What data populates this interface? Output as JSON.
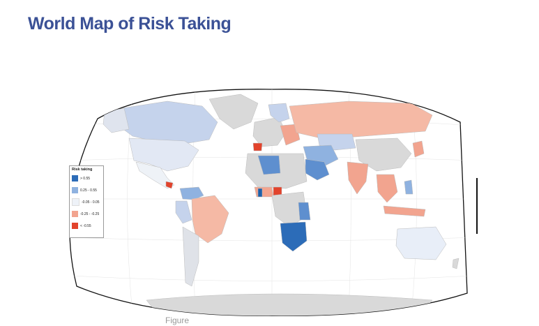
{
  "page": {
    "title": "World Map of Risk Taking"
  },
  "legend": {
    "title": "Risk taking",
    "items": [
      {
        "label": "> 0.55",
        "color": "#2c6cb8"
      },
      {
        "label": "0.25 - 0.55",
        "color": "#8fb2e0"
      },
      {
        "label": "-0.05 - 0.05",
        "color": "#eef2f8"
      },
      {
        "label": "-0.25 - -0.25",
        "color": "#f2a48f"
      },
      {
        "label": "< -0.55",
        "color": "#e2432c"
      }
    ]
  },
  "caption": "Figure"
}
